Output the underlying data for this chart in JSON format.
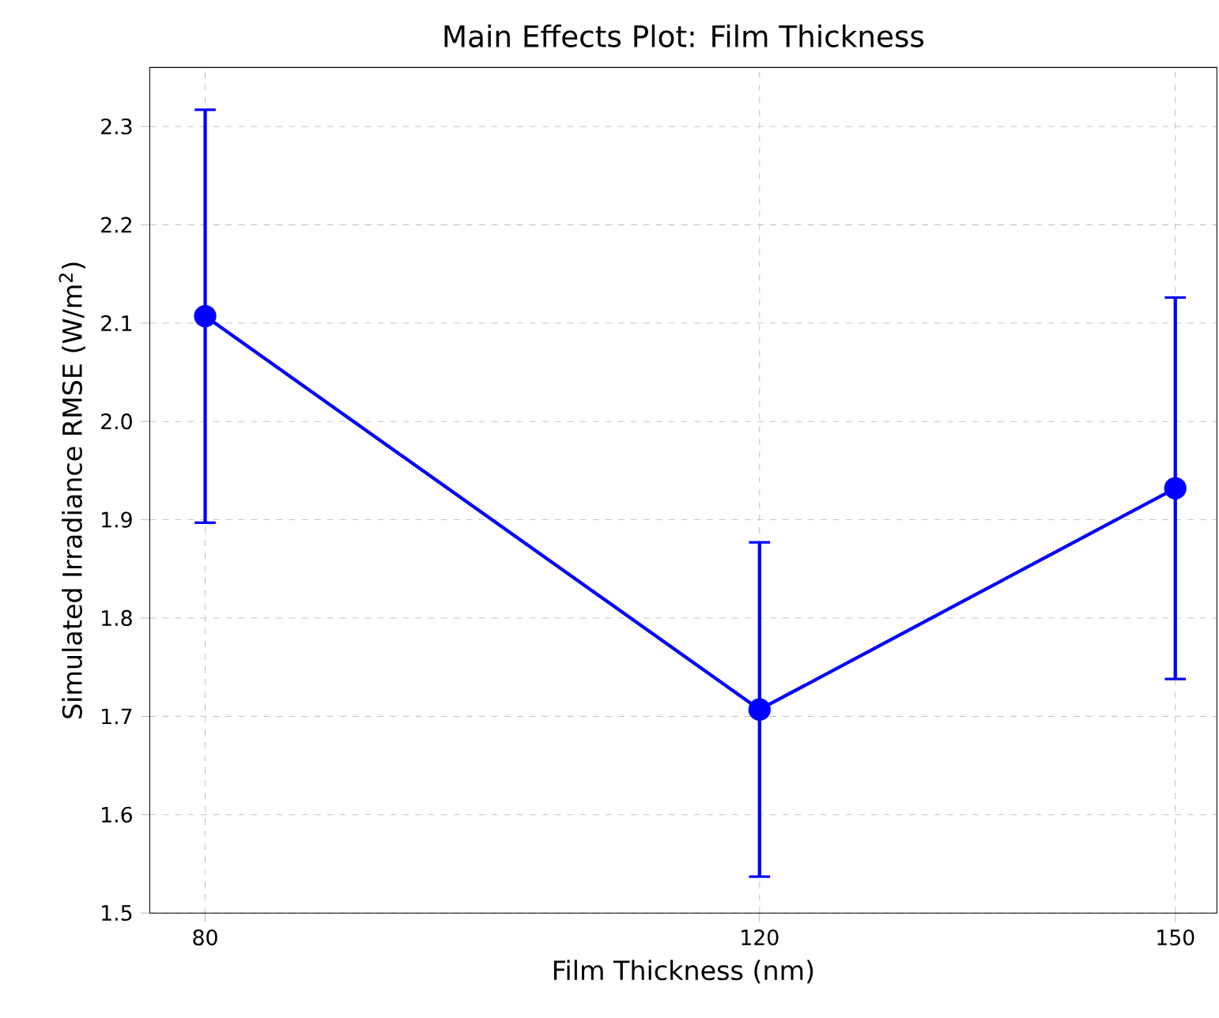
{
  "chart_data": {
    "type": "line",
    "title": "Main Effects Plot: Film Thickness",
    "xlabel": "Film Thickness (nm)",
    "ylabel": "Simulated Irradiance RMSE (W/m$^{2}$)",
    "x": [
      80,
      120,
      150
    ],
    "series": [
      {
        "color": "#0000ff",
        "values": [
          2.107,
          1.707,
          1.932
        ],
        "errors": [
          0.21,
          0.17,
          0.194
        ]
      }
    ],
    "xlim": [
      76,
      153
    ],
    "xticks": [
      80,
      120,
      150
    ],
    "ylim": [
      1.5,
      2.36
    ],
    "yticks": [
      1.5,
      1.6,
      1.7,
      1.8,
      1.9,
      {
        "value": 2.0,
        "label": "2.0"
      },
      2.1,
      2.2,
      2.3
    ],
    "grid": true,
    "marker": "circle",
    "line_style": "solid"
  }
}
